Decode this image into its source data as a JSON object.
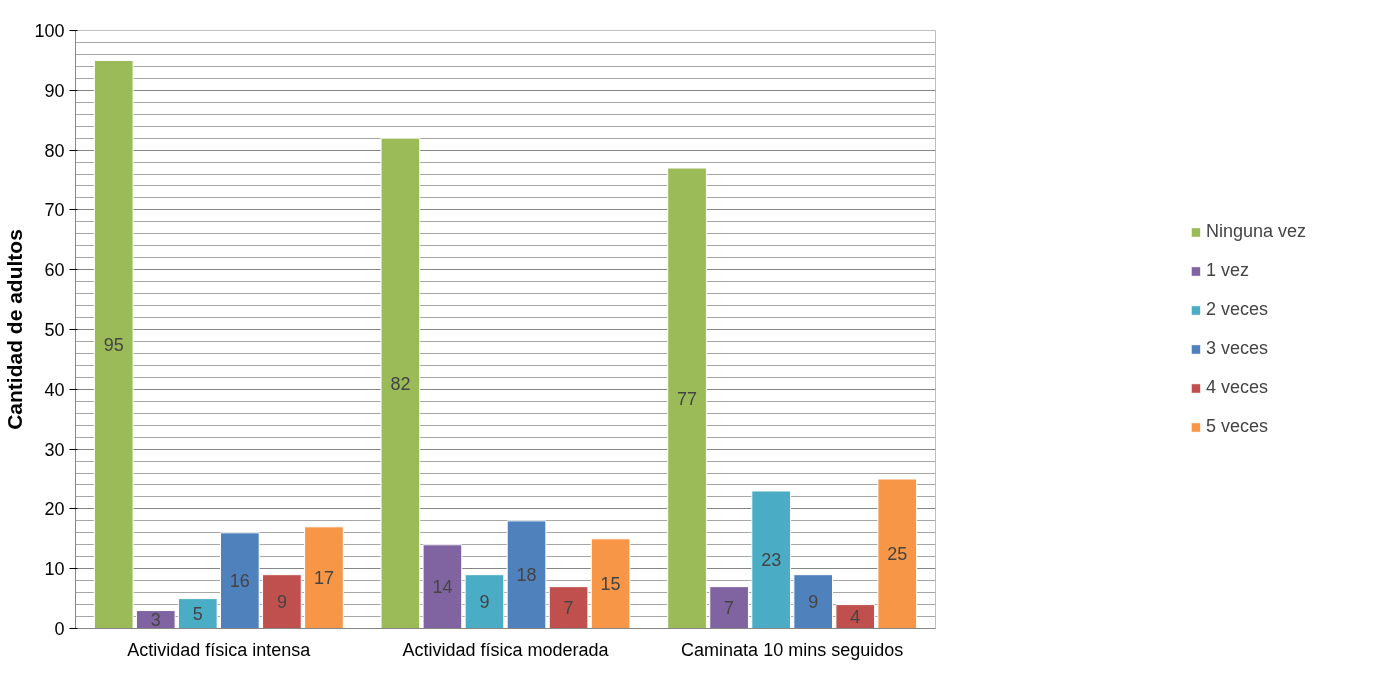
{
  "chart_data": {
    "type": "bar",
    "ylabel": "Cantidad de adultos",
    "categories": [
      "Actividad física intensa",
      "Actividad física moderada",
      "Caminata 10 mins seguidos"
    ],
    "series": [
      {
        "name": "Ninguna vez",
        "color": "#9bbb59",
        "values": [
          95,
          82,
          77
        ]
      },
      {
        "name": "1 vez",
        "color": "#8064a2",
        "values": [
          3,
          14,
          7
        ]
      },
      {
        "name": "2 veces",
        "color": "#4bacc6",
        "values": [
          5,
          9,
          23
        ]
      },
      {
        "name": "3 veces",
        "color": "#4f81bd",
        "values": [
          16,
          18,
          9
        ]
      },
      {
        "name": "4 veces",
        "color": "#c0504d",
        "values": [
          9,
          7,
          4
        ]
      },
      {
        "name": "5 veces",
        "color": "#f79646",
        "values": [
          17,
          15,
          25
        ]
      }
    ],
    "ylim": [
      0,
      100
    ],
    "yticks": [
      0,
      10,
      20,
      30,
      40,
      50,
      60,
      70,
      80,
      90,
      100
    ],
    "grid": "y",
    "legend": "right",
    "data_labels": true
  }
}
